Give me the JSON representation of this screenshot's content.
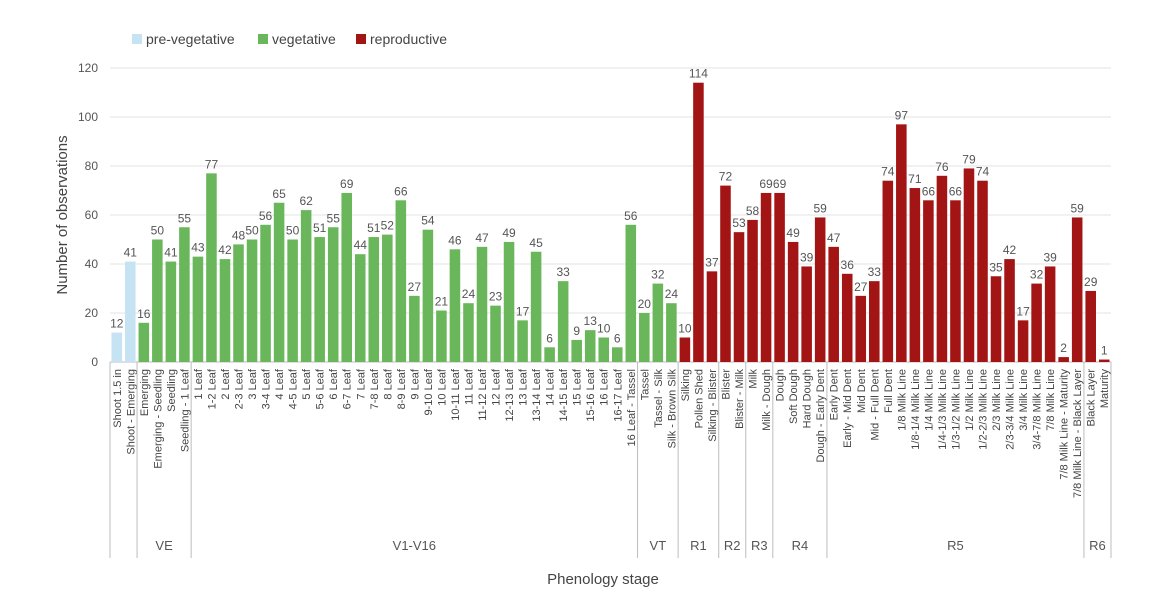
{
  "chart_data": {
    "type": "bar",
    "xlabel": "Phenology stage",
    "ylabel": "Number of observations",
    "ylim": [
      0,
      120
    ],
    "yticks": [
      0,
      20,
      40,
      60,
      80,
      100,
      120
    ],
    "grid": true,
    "legend": "top-left",
    "legend_entries": [
      {
        "key": "pre",
        "name": "pre-vegetative",
        "color": "#c5e3f3"
      },
      {
        "key": "veg",
        "name": "vegetative",
        "color": "#6ab65a"
      },
      {
        "key": "rep",
        "name": "reproductive",
        "color": "#a31515"
      }
    ],
    "categories": [
      "Shoot 1.5 in",
      "Shoot - Emerging",
      "Emerging",
      "Emerging - Seedling",
      "Seedling",
      "Seedling - 1 Leaf",
      "1 Leaf",
      "1-2 Leaf",
      "2 Leaf",
      "2-3 Leaf",
      "3 Leaf",
      "3-4 Leaf",
      "4 Leaf",
      "4-5 Leaf",
      "5 Leaf",
      "5-6 Leaf",
      "6 Leaf",
      "6-7 Leaf",
      "7 Leaf",
      "7-8 Leaf",
      "8 Leaf",
      "8-9 Leaf",
      "9 Leaf",
      "9-10 Leaf",
      "10 Leaf",
      "10-11 Leaf",
      "11 Leaf",
      "11-12 Leaf",
      "12 Leaf",
      "12-13 Leaf",
      "13 Leaf",
      "13-14 Leaf",
      "14 Leaf",
      "14-15 Leaf",
      "15 Leaf",
      "15-16 Leaf",
      "16 Leaf",
      "16-17 Leaf",
      "16 Leaf - Tassel",
      "Tassel",
      "Tassel - Silk",
      "Silk - Brown Silk",
      "Silking",
      "Pollen Shed",
      "Silking - Blister",
      "Blister",
      "Blister - Milk",
      "Milk",
      "Milk - Dough",
      "Dough",
      "Soft Dough",
      "Hard Dough",
      "Dough - Early Dent",
      "Early Dent",
      "Early - Mid Dent",
      "Mid Dent",
      "Mid - Full Dent",
      "Full Dent",
      "1/8 Milk Line",
      "1/8-1/4 Milk Line",
      "1/4 Milk Line",
      "1/4-1/3 Milk Line",
      "1/3-1/2 Milk Line",
      "1/2 Milk Line",
      "1/2-2/3 Milk Line",
      "2/3 Milk Line",
      "2/3-3/4 Milk Line",
      "3/4 Milk Line",
      "3/4-7/8 Milk Line",
      "7/8 Milk Line",
      "7/8 Milk Line - Maturity",
      "7/8 Milk Line - Black Layer",
      "Black Layer",
      "Maturity"
    ],
    "values": [
      12,
      41,
      16,
      50,
      41,
      55,
      43,
      77,
      42,
      48,
      50,
      56,
      65,
      50,
      62,
      51,
      55,
      69,
      44,
      51,
      52,
      66,
      27,
      54,
      21,
      46,
      24,
      47,
      23,
      49,
      17,
      45,
      6,
      33,
      9,
      13,
      10,
      6,
      56,
      20,
      32,
      24,
      10,
      114,
      37,
      72,
      53,
      58,
      69,
      69,
      49,
      39,
      59,
      47,
      36,
      27,
      33,
      74,
      97,
      71,
      66,
      76,
      66,
      79,
      74,
      35,
      42,
      17,
      32,
      39,
      2,
      59,
      29,
      1
    ],
    "group_of_bar": [
      "pre",
      "pre",
      "veg",
      "veg",
      "veg",
      "veg",
      "veg",
      "veg",
      "veg",
      "veg",
      "veg",
      "veg",
      "veg",
      "veg",
      "veg",
      "veg",
      "veg",
      "veg",
      "veg",
      "veg",
      "veg",
      "veg",
      "veg",
      "veg",
      "veg",
      "veg",
      "veg",
      "veg",
      "veg",
      "veg",
      "veg",
      "veg",
      "veg",
      "veg",
      "veg",
      "veg",
      "veg",
      "veg",
      "veg",
      "veg",
      "veg",
      "veg",
      "rep",
      "rep",
      "rep",
      "rep",
      "rep",
      "rep",
      "rep",
      "rep",
      "rep",
      "rep",
      "rep",
      "rep",
      "rep",
      "rep",
      "rep",
      "rep",
      "rep",
      "rep",
      "rep",
      "rep",
      "rep",
      "rep",
      "rep",
      "rep",
      "rep",
      "rep",
      "rep",
      "rep",
      "rep",
      "rep",
      "rep",
      "rep"
    ],
    "stages": [
      {
        "label": "",
        "start": 0,
        "end": 2
      },
      {
        "label": "VE",
        "start": 2,
        "end": 6
      },
      {
        "label": "V1-V16",
        "start": 6,
        "end": 39
      },
      {
        "label": "VT",
        "start": 39,
        "end": 42
      },
      {
        "label": "R1",
        "start": 42,
        "end": 45
      },
      {
        "label": "R2",
        "start": 45,
        "end": 47
      },
      {
        "label": "R3",
        "start": 47,
        "end": 49
      },
      {
        "label": "R4",
        "start": 49,
        "end": 53
      },
      {
        "label": "R5",
        "start": 53,
        "end": 72
      },
      {
        "label": "R6",
        "start": 72,
        "end": 74
      }
    ]
  }
}
